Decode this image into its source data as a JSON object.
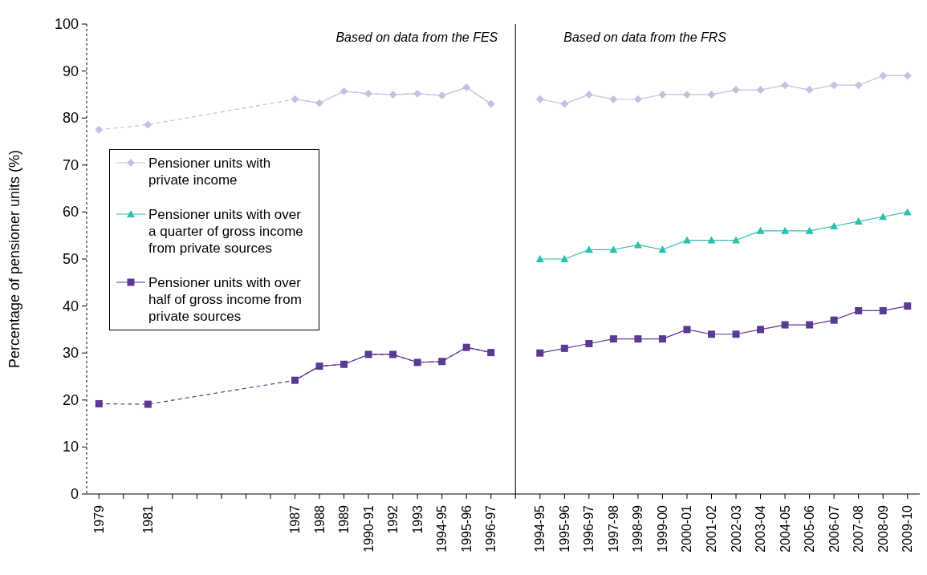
{
  "chart_data": {
    "type": "line",
    "ylabel": "Percentage of pensioner units (%)",
    "annotations": [
      "Based on data from the FES",
      "Based on data from the FRS"
    ],
    "categories": [
      "1979",
      null,
      "1981",
      null,
      null,
      null,
      null,
      null,
      "1987",
      "1988",
      "1989",
      "1990-91",
      "1992",
      "1993",
      "1994-95",
      "1995-96",
      "1996-97",
      null,
      "1994-95",
      "1995-96",
      "1996-97",
      "1997-98",
      "1998-99",
      "1999-00",
      "2000-01",
      "2001-02",
      "2002-03",
      "2003-04",
      "2004-05",
      "2005-06",
      "2006-07",
      "2007-08",
      "2008-09",
      "2009-10"
    ],
    "ylim": [
      0,
      100
    ],
    "yticks": [
      0,
      10,
      20,
      30,
      40,
      50,
      60,
      70,
      80,
      90,
      100
    ],
    "legend": "left",
    "series": [
      {
        "name": "Pensioner units with private income",
        "color": "#c9bfe0",
        "marker": "diamond",
        "values": [
          77.5,
          null,
          78.6,
          null,
          null,
          null,
          null,
          null,
          84,
          83.2,
          85.7,
          85.2,
          85,
          85.2,
          84.8,
          86.5,
          83,
          null,
          84,
          83,
          85,
          84,
          84,
          85,
          85,
          85,
          86,
          86,
          87,
          86,
          87,
          87,
          89,
          89
        ]
      },
      {
        "name": "Pensioner units with over a quarter of gross income from private sources",
        "color": "#2bbfb0",
        "marker": "triangle",
        "values": [
          null,
          null,
          null,
          null,
          null,
          null,
          null,
          null,
          null,
          null,
          null,
          null,
          null,
          null,
          null,
          null,
          null,
          null,
          50,
          50,
          52,
          52,
          53,
          52,
          54,
          54,
          54,
          56,
          56,
          56,
          57,
          58,
          59,
          60
        ]
      },
      {
        "name": "Pensioner units with over half of gross income from private sources",
        "color": "#5b3a94",
        "marker": "square",
        "values": [
          19.2,
          null,
          19.1,
          null,
          null,
          null,
          null,
          null,
          24.2,
          27.2,
          27.6,
          29.7,
          29.7,
          28,
          28.2,
          31.2,
          30.1,
          null,
          30,
          31,
          32,
          33,
          33,
          33,
          35,
          34,
          34,
          35,
          36,
          36,
          37,
          39,
          39,
          40
        ]
      }
    ]
  }
}
